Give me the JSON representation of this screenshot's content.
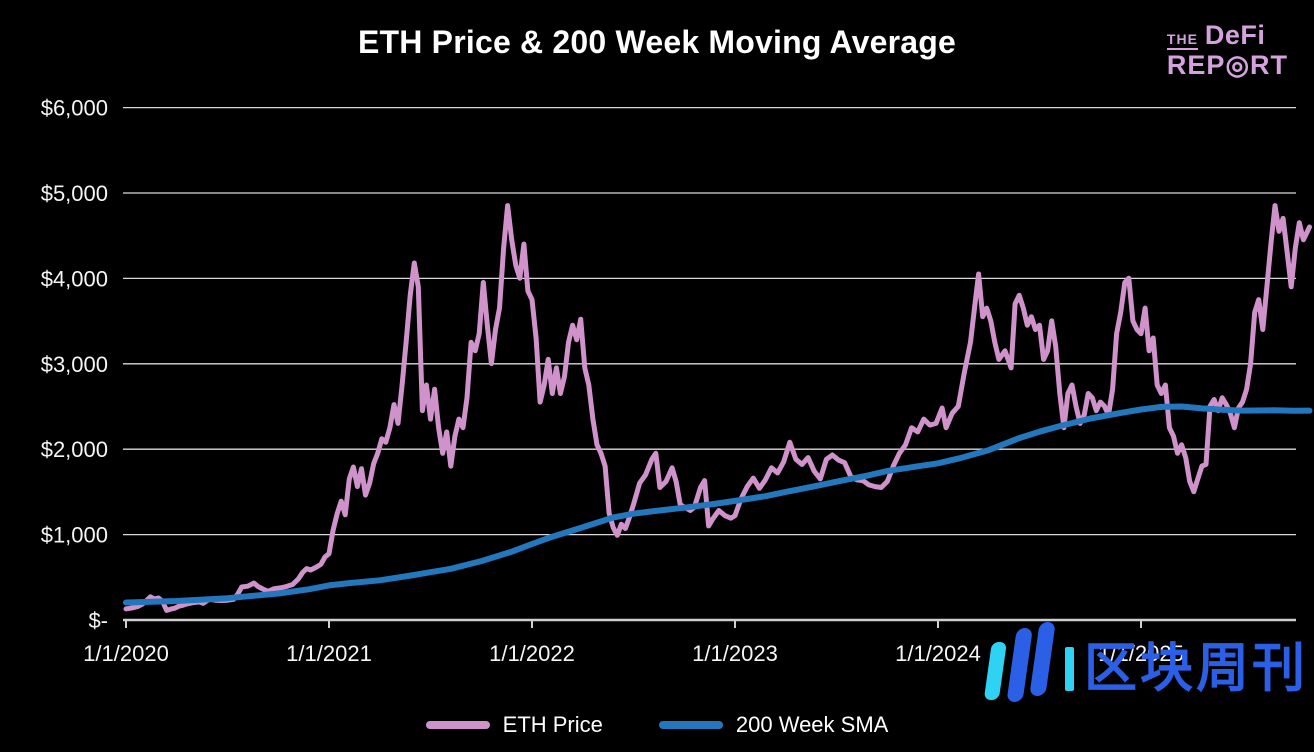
{
  "brand": {
    "the": "THE",
    "defi": "DeFi",
    "report": "REP◎RT",
    "color": "#d4a3de"
  },
  "watermark": {
    "text": "区块周刊",
    "blue": "#2b5fe6",
    "cyan": "#2fd2f2"
  },
  "legend": [
    {
      "label": "ETH Price",
      "color": "#cf92ca"
    },
    {
      "label": "200 Week SMA",
      "color": "#2377bd"
    }
  ],
  "chart_data": {
    "type": "line",
    "title": "ETH Price & 200 Week Moving Average",
    "xlabel": "",
    "ylabel": "",
    "grid": true,
    "legend_position": "bottom",
    "background": "#000000",
    "gridline_color": "#d9d9d9",
    "axis_color": "#cfcfcf",
    "tick_label_color": "#f5f5f5",
    "ylim": [
      0,
      6000
    ],
    "x_range_years_from_2020": [
      0,
      5.83
    ],
    "y_ticks": [
      {
        "value": 0,
        "label": "$-"
      },
      {
        "value": 1000,
        "label": "$1,000"
      },
      {
        "value": 2000,
        "label": "$2,000"
      },
      {
        "value": 3000,
        "label": "$3,000"
      },
      {
        "value": 4000,
        "label": "$4,000"
      },
      {
        "value": 5000,
        "label": "$5,000"
      },
      {
        "value": 6000,
        "label": "$6,000"
      }
    ],
    "x_ticks": [
      {
        "t": 0,
        "label": "1/1/2020"
      },
      {
        "t": 1,
        "label": "1/1/2021"
      },
      {
        "t": 2,
        "label": "1/1/2022"
      },
      {
        "t": 3,
        "label": "1/1/2023"
      },
      {
        "t": 4,
        "label": "1/1/2024"
      },
      {
        "t": 5,
        "label": "1/1/2025"
      }
    ],
    "series": [
      {
        "name": "ETH Price",
        "color": "#cf92ca",
        "width": 5,
        "points": [
          [
            0,
            130
          ],
          [
            0.03,
            142
          ],
          [
            0.06,
            160
          ],
          [
            0.08,
            185
          ],
          [
            0.1,
            225
          ],
          [
            0.12,
            272
          ],
          [
            0.14,
            245
          ],
          [
            0.16,
            258
          ],
          [
            0.18,
            218
          ],
          [
            0.2,
            112
          ],
          [
            0.22,
            128
          ],
          [
            0.24,
            138
          ],
          [
            0.26,
            162
          ],
          [
            0.28,
            172
          ],
          [
            0.3,
            188
          ],
          [
            0.33,
            202
          ],
          [
            0.36,
            212
          ],
          [
            0.38,
            196
          ],
          [
            0.41,
            242
          ],
          [
            0.44,
            232
          ],
          [
            0.47,
            228
          ],
          [
            0.5,
            232
          ],
          [
            0.53,
            242
          ],
          [
            0.55,
            302
          ],
          [
            0.57,
            386
          ],
          [
            0.6,
            396
          ],
          [
            0.63,
            432
          ],
          [
            0.65,
            392
          ],
          [
            0.68,
            356
          ],
          [
            0.7,
            336
          ],
          [
            0.73,
            366
          ],
          [
            0.76,
            376
          ],
          [
            0.79,
            392
          ],
          [
            0.82,
            416
          ],
          [
            0.85,
            482
          ],
          [
            0.87,
            556
          ],
          [
            0.89,
            602
          ],
          [
            0.91,
            586
          ],
          [
            0.94,
            622
          ],
          [
            0.96,
            652
          ],
          [
            0.98,
            736
          ],
          [
            1,
            776
          ],
          [
            1.02,
            1052
          ],
          [
            1.04,
            1242
          ],
          [
            1.06,
            1392
          ],
          [
            1.08,
            1232
          ],
          [
            1.1,
            1652
          ],
          [
            1.12,
            1792
          ],
          [
            1.14,
            1562
          ],
          [
            1.16,
            1772
          ],
          [
            1.18,
            1462
          ],
          [
            1.2,
            1602
          ],
          [
            1.22,
            1832
          ],
          [
            1.24,
            1952
          ],
          [
            1.26,
            2122
          ],
          [
            1.28,
            2082
          ],
          [
            1.3,
            2252
          ],
          [
            1.32,
            2522
          ],
          [
            1.34,
            2302
          ],
          [
            1.36,
            2752
          ],
          [
            1.38,
            3252
          ],
          [
            1.4,
            3802
          ],
          [
            1.42,
            4180
          ],
          [
            1.44,
            3902
          ],
          [
            1.46,
            2452
          ],
          [
            1.48,
            2752
          ],
          [
            1.5,
            2352
          ],
          [
            1.52,
            2702
          ],
          [
            1.54,
            2252
          ],
          [
            1.56,
            1952
          ],
          [
            1.58,
            2202
          ],
          [
            1.6,
            1802
          ],
          [
            1.62,
            2152
          ],
          [
            1.64,
            2352
          ],
          [
            1.66,
            2252
          ],
          [
            1.68,
            2602
          ],
          [
            1.7,
            3252
          ],
          [
            1.72,
            3152
          ],
          [
            1.74,
            3352
          ],
          [
            1.76,
            3952
          ],
          [
            1.78,
            3452
          ],
          [
            1.8,
            3002
          ],
          [
            1.82,
            3402
          ],
          [
            1.84,
            3652
          ],
          [
            1.86,
            4352
          ],
          [
            1.88,
            4852
          ],
          [
            1.9,
            4452
          ],
          [
            1.92,
            4152
          ],
          [
            1.94,
            4002
          ],
          [
            1.96,
            4402
          ],
          [
            1.98,
            3852
          ],
          [
            2,
            3752
          ],
          [
            2.02,
            3302
          ],
          [
            2.04,
            2552
          ],
          [
            2.06,
            2752
          ],
          [
            2.08,
            3052
          ],
          [
            2.1,
            2652
          ],
          [
            2.12,
            2952
          ],
          [
            2.14,
            2652
          ],
          [
            2.16,
            2852
          ],
          [
            2.18,
            3252
          ],
          [
            2.2,
            3452
          ],
          [
            2.22,
            3282
          ],
          [
            2.24,
            3522
          ],
          [
            2.26,
            2952
          ],
          [
            2.28,
            2752
          ],
          [
            2.3,
            2352
          ],
          [
            2.32,
            2052
          ],
          [
            2.34,
            1952
          ],
          [
            2.36,
            1802
          ],
          [
            2.38,
            1252
          ],
          [
            2.4,
            1082
          ],
          [
            2.42,
            992
          ],
          [
            2.44,
            1122
          ],
          [
            2.46,
            1072
          ],
          [
            2.48,
            1202
          ],
          [
            2.5,
            1352
          ],
          [
            2.53,
            1602
          ],
          [
            2.56,
            1702
          ],
          [
            2.59,
            1882
          ],
          [
            2.61,
            1952
          ],
          [
            2.63,
            1552
          ],
          [
            2.66,
            1622
          ],
          [
            2.69,
            1782
          ],
          [
            2.71,
            1622
          ],
          [
            2.73,
            1352
          ],
          [
            2.75,
            1322
          ],
          [
            2.78,
            1282
          ],
          [
            2.8,
            1322
          ],
          [
            2.83,
            1552
          ],
          [
            2.85,
            1632
          ],
          [
            2.87,
            1102
          ],
          [
            2.89,
            1182
          ],
          [
            2.92,
            1282
          ],
          [
            2.95,
            1222
          ],
          [
            2.98,
            1192
          ],
          [
            3,
            1222
          ],
          [
            3.03,
            1422
          ],
          [
            3.06,
            1562
          ],
          [
            3.09,
            1662
          ],
          [
            3.12,
            1542
          ],
          [
            3.15,
            1642
          ],
          [
            3.18,
            1782
          ],
          [
            3.21,
            1722
          ],
          [
            3.24,
            1852
          ],
          [
            3.27,
            2082
          ],
          [
            3.3,
            1882
          ],
          [
            3.33,
            1822
          ],
          [
            3.36,
            1902
          ],
          [
            3.39,
            1742
          ],
          [
            3.42,
            1652
          ],
          [
            3.45,
            1882
          ],
          [
            3.48,
            1932
          ],
          [
            3.51,
            1872
          ],
          [
            3.54,
            1842
          ],
          [
            3.57,
            1682
          ],
          [
            3.6,
            1642
          ],
          [
            3.63,
            1632
          ],
          [
            3.66,
            1582
          ],
          [
            3.69,
            1562
          ],
          [
            3.72,
            1552
          ],
          [
            3.75,
            1622
          ],
          [
            3.78,
            1802
          ],
          [
            3.81,
            1952
          ],
          [
            3.84,
            2052
          ],
          [
            3.87,
            2252
          ],
          [
            3.9,
            2202
          ],
          [
            3.93,
            2352
          ],
          [
            3.96,
            2282
          ],
          [
            3.99,
            2302
          ],
          [
            4.02,
            2482
          ],
          [
            4.04,
            2252
          ],
          [
            4.07,
            2422
          ],
          [
            4.1,
            2502
          ],
          [
            4.13,
            2902
          ],
          [
            4.16,
            3252
          ],
          [
            4.18,
            3652
          ],
          [
            4.2,
            4052
          ],
          [
            4.22,
            3552
          ],
          [
            4.24,
            3652
          ],
          [
            4.26,
            3502
          ],
          [
            4.28,
            3252
          ],
          [
            4.3,
            3052
          ],
          [
            4.33,
            3152
          ],
          [
            4.36,
            2952
          ],
          [
            4.38,
            3702
          ],
          [
            4.4,
            3802
          ],
          [
            4.42,
            3652
          ],
          [
            4.44,
            3452
          ],
          [
            4.46,
            3552
          ],
          [
            4.48,
            3402
          ],
          [
            4.5,
            3452
          ],
          [
            4.52,
            3052
          ],
          [
            4.54,
            3152
          ],
          [
            4.56,
            3502
          ],
          [
            4.58,
            3202
          ],
          [
            4.6,
            2652
          ],
          [
            4.62,
            2252
          ],
          [
            4.64,
            2652
          ],
          [
            4.66,
            2752
          ],
          [
            4.68,
            2502
          ],
          [
            4.7,
            2302
          ],
          [
            4.72,
            2402
          ],
          [
            4.74,
            2652
          ],
          [
            4.76,
            2602
          ],
          [
            4.78,
            2452
          ],
          [
            4.8,
            2552
          ],
          [
            4.82,
            2502
          ],
          [
            4.84,
            2402
          ],
          [
            4.86,
            2702
          ],
          [
            4.88,
            3352
          ],
          [
            4.9,
            3602
          ],
          [
            4.92,
            3952
          ],
          [
            4.94,
            4002
          ],
          [
            4.96,
            3502
          ],
          [
            4.98,
            3402
          ],
          [
            5,
            3352
          ],
          [
            5.02,
            3652
          ],
          [
            5.04,
            3152
          ],
          [
            5.06,
            3302
          ],
          [
            5.08,
            2752
          ],
          [
            5.1,
            2652
          ],
          [
            5.12,
            2752
          ],
          [
            5.14,
            2252
          ],
          [
            5.16,
            2152
          ],
          [
            5.18,
            1952
          ],
          [
            5.2,
            2052
          ],
          [
            5.22,
            1902
          ],
          [
            5.24,
            1622
          ],
          [
            5.26,
            1502
          ],
          [
            5.28,
            1652
          ],
          [
            5.3,
            1802
          ],
          [
            5.32,
            1822
          ],
          [
            5.34,
            2502
          ],
          [
            5.36,
            2582
          ],
          [
            5.38,
            2452
          ],
          [
            5.4,
            2602
          ],
          [
            5.42,
            2522
          ],
          [
            5.44,
            2422
          ],
          [
            5.46,
            2252
          ],
          [
            5.48,
            2482
          ],
          [
            5.5,
            2552
          ],
          [
            5.52,
            2702
          ],
          [
            5.54,
            3002
          ],
          [
            5.56,
            3602
          ],
          [
            5.58,
            3752
          ],
          [
            5.6,
            3402
          ],
          [
            5.62,
            3902
          ],
          [
            5.64,
            4402
          ],
          [
            5.66,
            4852
          ],
          [
            5.68,
            4552
          ],
          [
            5.7,
            4702
          ],
          [
            5.72,
            4302
          ],
          [
            5.74,
            3902
          ],
          [
            5.76,
            4352
          ],
          [
            5.78,
            4652
          ],
          [
            5.8,
            4452
          ],
          [
            5.83,
            4602
          ]
        ]
      },
      {
        "name": "200 Week SMA",
        "color": "#2377bd",
        "width": 6,
        "points": [
          [
            0,
            205
          ],
          [
            0.25,
            222
          ],
          [
            0.5,
            255
          ],
          [
            0.75,
            310
          ],
          [
            0.9,
            360
          ],
          [
            1,
            405
          ],
          [
            1.1,
            432
          ],
          [
            1.25,
            465
          ],
          [
            1.4,
            520
          ],
          [
            1.5,
            560
          ],
          [
            1.6,
            600
          ],
          [
            1.75,
            690
          ],
          [
            1.9,
            800
          ],
          [
            2,
            890
          ],
          [
            2.1,
            975
          ],
          [
            2.25,
            1085
          ],
          [
            2.4,
            1200
          ],
          [
            2.5,
            1245
          ],
          [
            2.6,
            1275
          ],
          [
            2.75,
            1315
          ],
          [
            2.9,
            1360
          ],
          [
            3,
            1395
          ],
          [
            3.15,
            1450
          ],
          [
            3.25,
            1500
          ],
          [
            3.4,
            1570
          ],
          [
            3.5,
            1620
          ],
          [
            3.65,
            1690
          ],
          [
            3.75,
            1745
          ],
          [
            3.9,
            1800
          ],
          [
            4,
            1835
          ],
          [
            4.1,
            1890
          ],
          [
            4.25,
            1990
          ],
          [
            4.4,
            2130
          ],
          [
            4.5,
            2205
          ],
          [
            4.6,
            2270
          ],
          [
            4.75,
            2360
          ],
          [
            4.9,
            2425
          ],
          [
            5,
            2465
          ],
          [
            5.1,
            2495
          ],
          [
            5.2,
            2500
          ],
          [
            5.3,
            2478
          ],
          [
            5.4,
            2462
          ],
          [
            5.5,
            2452
          ],
          [
            5.65,
            2455
          ],
          [
            5.75,
            2450
          ],
          [
            5.83,
            2452
          ]
        ]
      }
    ]
  }
}
